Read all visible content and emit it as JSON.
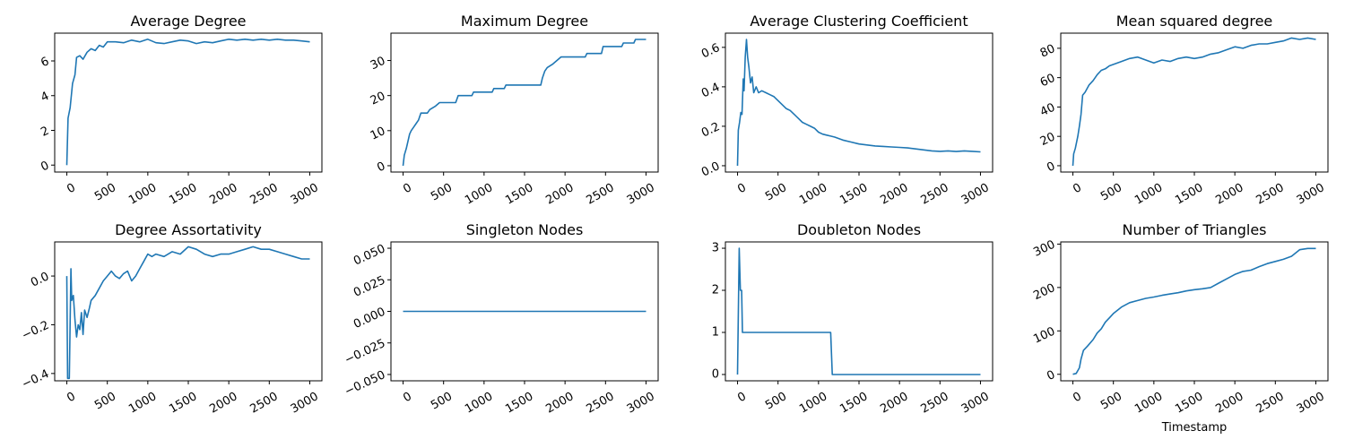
{
  "chart_data": [
    {
      "type": "line",
      "title": "Average Degree",
      "color": "#1f77b4",
      "xlim": [
        -150,
        3150
      ],
      "ylim": [
        -0.4,
        7.6
      ],
      "x_ticks": [
        0,
        500,
        1000,
        1500,
        2000,
        2500,
        3000
      ],
      "y_ticks": [
        0,
        2,
        4,
        6
      ],
      "y_tick_labels": [
        "0",
        "2",
        "4",
        "6"
      ],
      "y_tick_rotation": -25,
      "points": [
        [
          0,
          0
        ],
        [
          15,
          2.7
        ],
        [
          40,
          3.3
        ],
        [
          70,
          4.7
        ],
        [
          100,
          5.2
        ],
        [
          120,
          6.2
        ],
        [
          160,
          6.3
        ],
        [
          200,
          6.1
        ],
        [
          250,
          6.5
        ],
        [
          300,
          6.7
        ],
        [
          350,
          6.6
        ],
        [
          400,
          6.9
        ],
        [
          450,
          6.8
        ],
        [
          500,
          7.1
        ],
        [
          600,
          7.1
        ],
        [
          700,
          7.05
        ],
        [
          800,
          7.2
        ],
        [
          900,
          7.1
        ],
        [
          1000,
          7.25
        ],
        [
          1100,
          7.05
        ],
        [
          1200,
          7.0
        ],
        [
          1300,
          7.1
        ],
        [
          1400,
          7.2
        ],
        [
          1500,
          7.15
        ],
        [
          1600,
          7.0
        ],
        [
          1700,
          7.1
        ],
        [
          1800,
          7.05
        ],
        [
          1900,
          7.15
        ],
        [
          2000,
          7.25
        ],
        [
          2100,
          7.2
        ],
        [
          2200,
          7.25
        ],
        [
          2300,
          7.2
        ],
        [
          2400,
          7.25
        ],
        [
          2500,
          7.2
        ],
        [
          2600,
          7.25
        ],
        [
          2700,
          7.2
        ],
        [
          2800,
          7.2
        ],
        [
          2900,
          7.15
        ],
        [
          3000,
          7.1
        ]
      ]
    },
    {
      "type": "line",
      "title": "Maximum Degree",
      "color": "#1f77b4",
      "xlim": [
        -150,
        3150
      ],
      "ylim": [
        -1.8,
        37.8
      ],
      "x_ticks": [
        0,
        500,
        1000,
        1500,
        2000,
        2500,
        3000
      ],
      "y_ticks": [
        0,
        10,
        20,
        30
      ],
      "y_tick_labels": [
        "0",
        "10",
        "20",
        "30"
      ],
      "y_tick_rotation": -25,
      "points": [
        [
          0,
          0
        ],
        [
          15,
          3
        ],
        [
          40,
          5
        ],
        [
          60,
          7
        ],
        [
          80,
          9
        ],
        [
          100,
          10
        ],
        [
          130,
          11
        ],
        [
          160,
          12
        ],
        [
          190,
          13
        ],
        [
          220,
          15
        ],
        [
          300,
          15
        ],
        [
          330,
          16
        ],
        [
          400,
          17
        ],
        [
          450,
          18
        ],
        [
          650,
          18
        ],
        [
          680,
          20
        ],
        [
          850,
          20
        ],
        [
          870,
          21
        ],
        [
          1100,
          21
        ],
        [
          1120,
          22
        ],
        [
          1250,
          22
        ],
        [
          1270,
          23
        ],
        [
          1700,
          23
        ],
        [
          1720,
          25
        ],
        [
          1750,
          27
        ],
        [
          1780,
          28
        ],
        [
          1850,
          29
        ],
        [
          1900,
          30
        ],
        [
          1950,
          31
        ],
        [
          2250,
          31
        ],
        [
          2270,
          32
        ],
        [
          2450,
          32
        ],
        [
          2470,
          34
        ],
        [
          2700,
          34
        ],
        [
          2720,
          35
        ],
        [
          2850,
          35
        ],
        [
          2870,
          36
        ],
        [
          3000,
          36
        ]
      ]
    },
    {
      "type": "line",
      "title": "Average Clustering Coefficient",
      "color": "#1f77b4",
      "xlim": [
        -150,
        3150
      ],
      "ylim": [
        -0.032,
        0.672
      ],
      "x_ticks": [
        0,
        500,
        1000,
        1500,
        2000,
        2500,
        3000
      ],
      "y_ticks": [
        0.0,
        0.2,
        0.4,
        0.6
      ],
      "y_tick_labels": [
        "0.0",
        "0.2",
        "0.4",
        "0.6"
      ],
      "y_tick_rotation": -25,
      "points": [
        [
          0,
          0
        ],
        [
          10,
          0.18
        ],
        [
          25,
          0.22
        ],
        [
          40,
          0.27
        ],
        [
          55,
          0.26
        ],
        [
          70,
          0.44
        ],
        [
          80,
          0.38
        ],
        [
          95,
          0.55
        ],
        [
          110,
          0.64
        ],
        [
          125,
          0.55
        ],
        [
          140,
          0.5
        ],
        [
          160,
          0.42
        ],
        [
          180,
          0.45
        ],
        [
          200,
          0.37
        ],
        [
          230,
          0.4
        ],
        [
          260,
          0.37
        ],
        [
          300,
          0.38
        ],
        [
          350,
          0.37
        ],
        [
          400,
          0.36
        ],
        [
          450,
          0.35
        ],
        [
          500,
          0.33
        ],
        [
          550,
          0.31
        ],
        [
          600,
          0.29
        ],
        [
          650,
          0.28
        ],
        [
          700,
          0.26
        ],
        [
          750,
          0.24
        ],
        [
          800,
          0.22
        ],
        [
          850,
          0.21
        ],
        [
          900,
          0.2
        ],
        [
          950,
          0.19
        ],
        [
          1000,
          0.17
        ],
        [
          1050,
          0.16
        ],
        [
          1100,
          0.155
        ],
        [
          1150,
          0.15
        ],
        [
          1200,
          0.145
        ],
        [
          1300,
          0.13
        ],
        [
          1400,
          0.12
        ],
        [
          1500,
          0.11
        ],
        [
          1600,
          0.105
        ],
        [
          1700,
          0.1
        ],
        [
          1800,
          0.098
        ],
        [
          1900,
          0.095
        ],
        [
          2000,
          0.093
        ],
        [
          2100,
          0.09
        ],
        [
          2200,
          0.085
        ],
        [
          2300,
          0.08
        ],
        [
          2400,
          0.075
        ],
        [
          2500,
          0.073
        ],
        [
          2600,
          0.075
        ],
        [
          2700,
          0.072
        ],
        [
          2800,
          0.075
        ],
        [
          2900,
          0.073
        ],
        [
          3000,
          0.07
        ]
      ]
    },
    {
      "type": "line",
      "title": "Mean squared degree",
      "color": "#1f77b4",
      "xlim": [
        -150,
        3150
      ],
      "ylim": [
        -4.3,
        90.3
      ],
      "x_ticks": [
        0,
        500,
        1000,
        1500,
        2000,
        2500,
        3000
      ],
      "y_ticks": [
        0,
        20,
        40,
        60,
        80
      ],
      "y_tick_labels": [
        "0",
        "20",
        "40",
        "60",
        "80"
      ],
      "y_tick_rotation": -25,
      "points": [
        [
          0,
          0
        ],
        [
          10,
          8
        ],
        [
          30,
          12
        ],
        [
          60,
          20
        ],
        [
          80,
          27
        ],
        [
          100,
          35
        ],
        [
          120,
          48
        ],
        [
          150,
          50
        ],
        [
          200,
          55
        ],
        [
          250,
          58
        ],
        [
          300,
          62
        ],
        [
          350,
          65
        ],
        [
          400,
          66
        ],
        [
          450,
          68
        ],
        [
          500,
          69
        ],
        [
          600,
          71
        ],
        [
          700,
          73
        ],
        [
          800,
          74
        ],
        [
          900,
          72
        ],
        [
          1000,
          70
        ],
        [
          1100,
          72
        ],
        [
          1200,
          71
        ],
        [
          1300,
          73
        ],
        [
          1400,
          74
        ],
        [
          1500,
          73
        ],
        [
          1600,
          74
        ],
        [
          1700,
          76
        ],
        [
          1800,
          77
        ],
        [
          1900,
          79
        ],
        [
          2000,
          81
        ],
        [
          2100,
          80
        ],
        [
          2200,
          82
        ],
        [
          2300,
          83
        ],
        [
          2400,
          83
        ],
        [
          2500,
          84
        ],
        [
          2600,
          85
        ],
        [
          2700,
          87
        ],
        [
          2800,
          86
        ],
        [
          2900,
          87
        ],
        [
          3000,
          86
        ]
      ]
    },
    {
      "type": "line",
      "title": "Degree Assortativity",
      "color": "#1f77b4",
      "xlim": [
        -150,
        3150
      ],
      "ylim": [
        -0.43,
        0.14
      ],
      "x_ticks": [
        0,
        500,
        1000,
        1500,
        2000,
        2500,
        3000
      ],
      "y_ticks": [
        -0.4,
        -0.2,
        0.0
      ],
      "y_tick_labels": [
        "−0.4",
        "−0.2",
        "0.0"
      ],
      "y_tick_rotation": -25,
      "points": [
        [
          0,
          0.0
        ],
        [
          10,
          -0.42
        ],
        [
          30,
          -0.42
        ],
        [
          50,
          0.03
        ],
        [
          60,
          -0.1
        ],
        [
          80,
          -0.08
        ],
        [
          100,
          -0.18
        ],
        [
          120,
          -0.25
        ],
        [
          140,
          -0.2
        ],
        [
          160,
          -0.22
        ],
        [
          180,
          -0.15
        ],
        [
          200,
          -0.24
        ],
        [
          220,
          -0.14
        ],
        [
          250,
          -0.17
        ],
        [
          280,
          -0.13
        ],
        [
          300,
          -0.1
        ],
        [
          350,
          -0.08
        ],
        [
          400,
          -0.05
        ],
        [
          450,
          -0.02
        ],
        [
          500,
          0.0
        ],
        [
          550,
          0.02
        ],
        [
          600,
          0.0
        ],
        [
          650,
          -0.01
        ],
        [
          700,
          0.01
        ],
        [
          750,
          0.02
        ],
        [
          800,
          -0.02
        ],
        [
          850,
          0.0
        ],
        [
          900,
          0.03
        ],
        [
          950,
          0.06
        ],
        [
          1000,
          0.09
        ],
        [
          1050,
          0.08
        ],
        [
          1100,
          0.09
        ],
        [
          1200,
          0.08
        ],
        [
          1300,
          0.1
        ],
        [
          1400,
          0.09
        ],
        [
          1500,
          0.12
        ],
        [
          1600,
          0.11
        ],
        [
          1700,
          0.09
        ],
        [
          1800,
          0.08
        ],
        [
          1900,
          0.09
        ],
        [
          2000,
          0.09
        ],
        [
          2100,
          0.1
        ],
        [
          2200,
          0.11
        ],
        [
          2300,
          0.12
        ],
        [
          2400,
          0.11
        ],
        [
          2500,
          0.11
        ],
        [
          2600,
          0.1
        ],
        [
          2700,
          0.09
        ],
        [
          2800,
          0.08
        ],
        [
          2900,
          0.07
        ],
        [
          3000,
          0.07
        ]
      ]
    },
    {
      "type": "line",
      "title": "Singleton Nodes",
      "color": "#1f77b4",
      "xlim": [
        -150,
        3150
      ],
      "ylim": [
        -0.055,
        0.055
      ],
      "x_ticks": [
        0,
        500,
        1000,
        1500,
        2000,
        2500,
        3000
      ],
      "y_ticks": [
        -0.05,
        -0.025,
        0.0,
        0.025,
        0.05
      ],
      "y_tick_labels": [
        "−0.050",
        "−0.025",
        "0.000",
        "0.025",
        "0.050"
      ],
      "y_tick_rotation": -25,
      "points": [
        [
          0,
          0
        ],
        [
          3000,
          0
        ]
      ]
    },
    {
      "type": "line",
      "title": "Doubleton Nodes",
      "color": "#1f77b4",
      "xlim": [
        -150,
        3150
      ],
      "ylim": [
        -0.15,
        3.15
      ],
      "x_ticks": [
        0,
        500,
        1000,
        1500,
        2000,
        2500,
        3000
      ],
      "y_ticks": [
        0,
        1,
        2,
        3
      ],
      "y_tick_labels": [
        "0",
        "1",
        "2",
        "3"
      ],
      "y_tick_rotation": 0,
      "points": [
        [
          0,
          0
        ],
        [
          20,
          3
        ],
        [
          35,
          2
        ],
        [
          50,
          2
        ],
        [
          60,
          1
        ],
        [
          1150,
          1
        ],
        [
          1170,
          0
        ],
        [
          3000,
          0
        ]
      ]
    },
    {
      "type": "line",
      "title": "Number of Triangles",
      "xlabel": "Timestamp",
      "color": "#1f77b4",
      "xlim": [
        -150,
        3150
      ],
      "ylim": [
        -15,
        305
      ],
      "x_ticks": [
        0,
        500,
        1000,
        1500,
        2000,
        2500,
        3000
      ],
      "y_ticks": [
        0,
        100,
        200,
        300
      ],
      "y_tick_labels": [
        "0",
        "100",
        "200",
        "300"
      ],
      "y_tick_rotation": -25,
      "points": [
        [
          0,
          0
        ],
        [
          40,
          2
        ],
        [
          80,
          15
        ],
        [
          100,
          35
        ],
        [
          130,
          55
        ],
        [
          180,
          65
        ],
        [
          250,
          80
        ],
        [
          300,
          95
        ],
        [
          350,
          105
        ],
        [
          400,
          120
        ],
        [
          450,
          130
        ],
        [
          500,
          140
        ],
        [
          600,
          155
        ],
        [
          700,
          165
        ],
        [
          800,
          170
        ],
        [
          900,
          175
        ],
        [
          1000,
          178
        ],
        [
          1100,
          182
        ],
        [
          1200,
          185
        ],
        [
          1300,
          188
        ],
        [
          1400,
          192
        ],
        [
          1500,
          195
        ],
        [
          1600,
          197
        ],
        [
          1700,
          200
        ],
        [
          1800,
          210
        ],
        [
          1900,
          220
        ],
        [
          2000,
          230
        ],
        [
          2100,
          237
        ],
        [
          2200,
          240
        ],
        [
          2300,
          248
        ],
        [
          2400,
          255
        ],
        [
          2500,
          260
        ],
        [
          2600,
          265
        ],
        [
          2700,
          272
        ],
        [
          2800,
          287
        ],
        [
          2900,
          290
        ],
        [
          3000,
          290
        ]
      ]
    }
  ]
}
